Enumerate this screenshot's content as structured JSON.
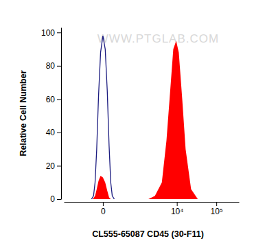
{
  "chart_data": {
    "type": "area",
    "x_label": "CL555-65087 CD45 (30-F11)",
    "y_label": "Relative Cell Number",
    "annotations": [
      "WWW.PTGLAB.COM"
    ],
    "log": "x",
    "xlim": [
      -1200,
      370000
    ],
    "xticks": [
      0,
      {
        "value": 10000,
        "label": "10⁴"
      },
      {
        "value": 100000,
        "label": "10⁵"
      }
    ],
    "ylim": [
      0,
      103
    ],
    "yticks": [
      0,
      20,
      40,
      60,
      80,
      100
    ],
    "grid": false,
    "series": [
      {
        "type": "line",
        "color": "#1c1c80",
        "x": [
          -130,
          -100,
          -80,
          -60,
          -40,
          -20,
          0,
          20,
          40,
          60,
          80,
          100,
          130
        ],
        "values": [
          0,
          2,
          10,
          30,
          62,
          88,
          98,
          90,
          65,
          32,
          10,
          2,
          0
        ]
      },
      {
        "type": "area",
        "color": "#ff0000",
        "x": [
          -110,
          -80,
          -60,
          -40,
          -20,
          0,
          20,
          40,
          60,
          80,
          1800,
          2700,
          4100,
          5400,
          7000,
          8100,
          9600,
          11200,
          13700,
          16700,
          23000,
          34000
        ],
        "values": [
          0,
          2,
          6,
          11,
          14,
          13,
          10,
          5,
          1,
          0,
          0,
          2,
          10,
          35,
          70,
          90,
          95,
          88,
          60,
          30,
          6,
          0
        ]
      }
    ]
  }
}
